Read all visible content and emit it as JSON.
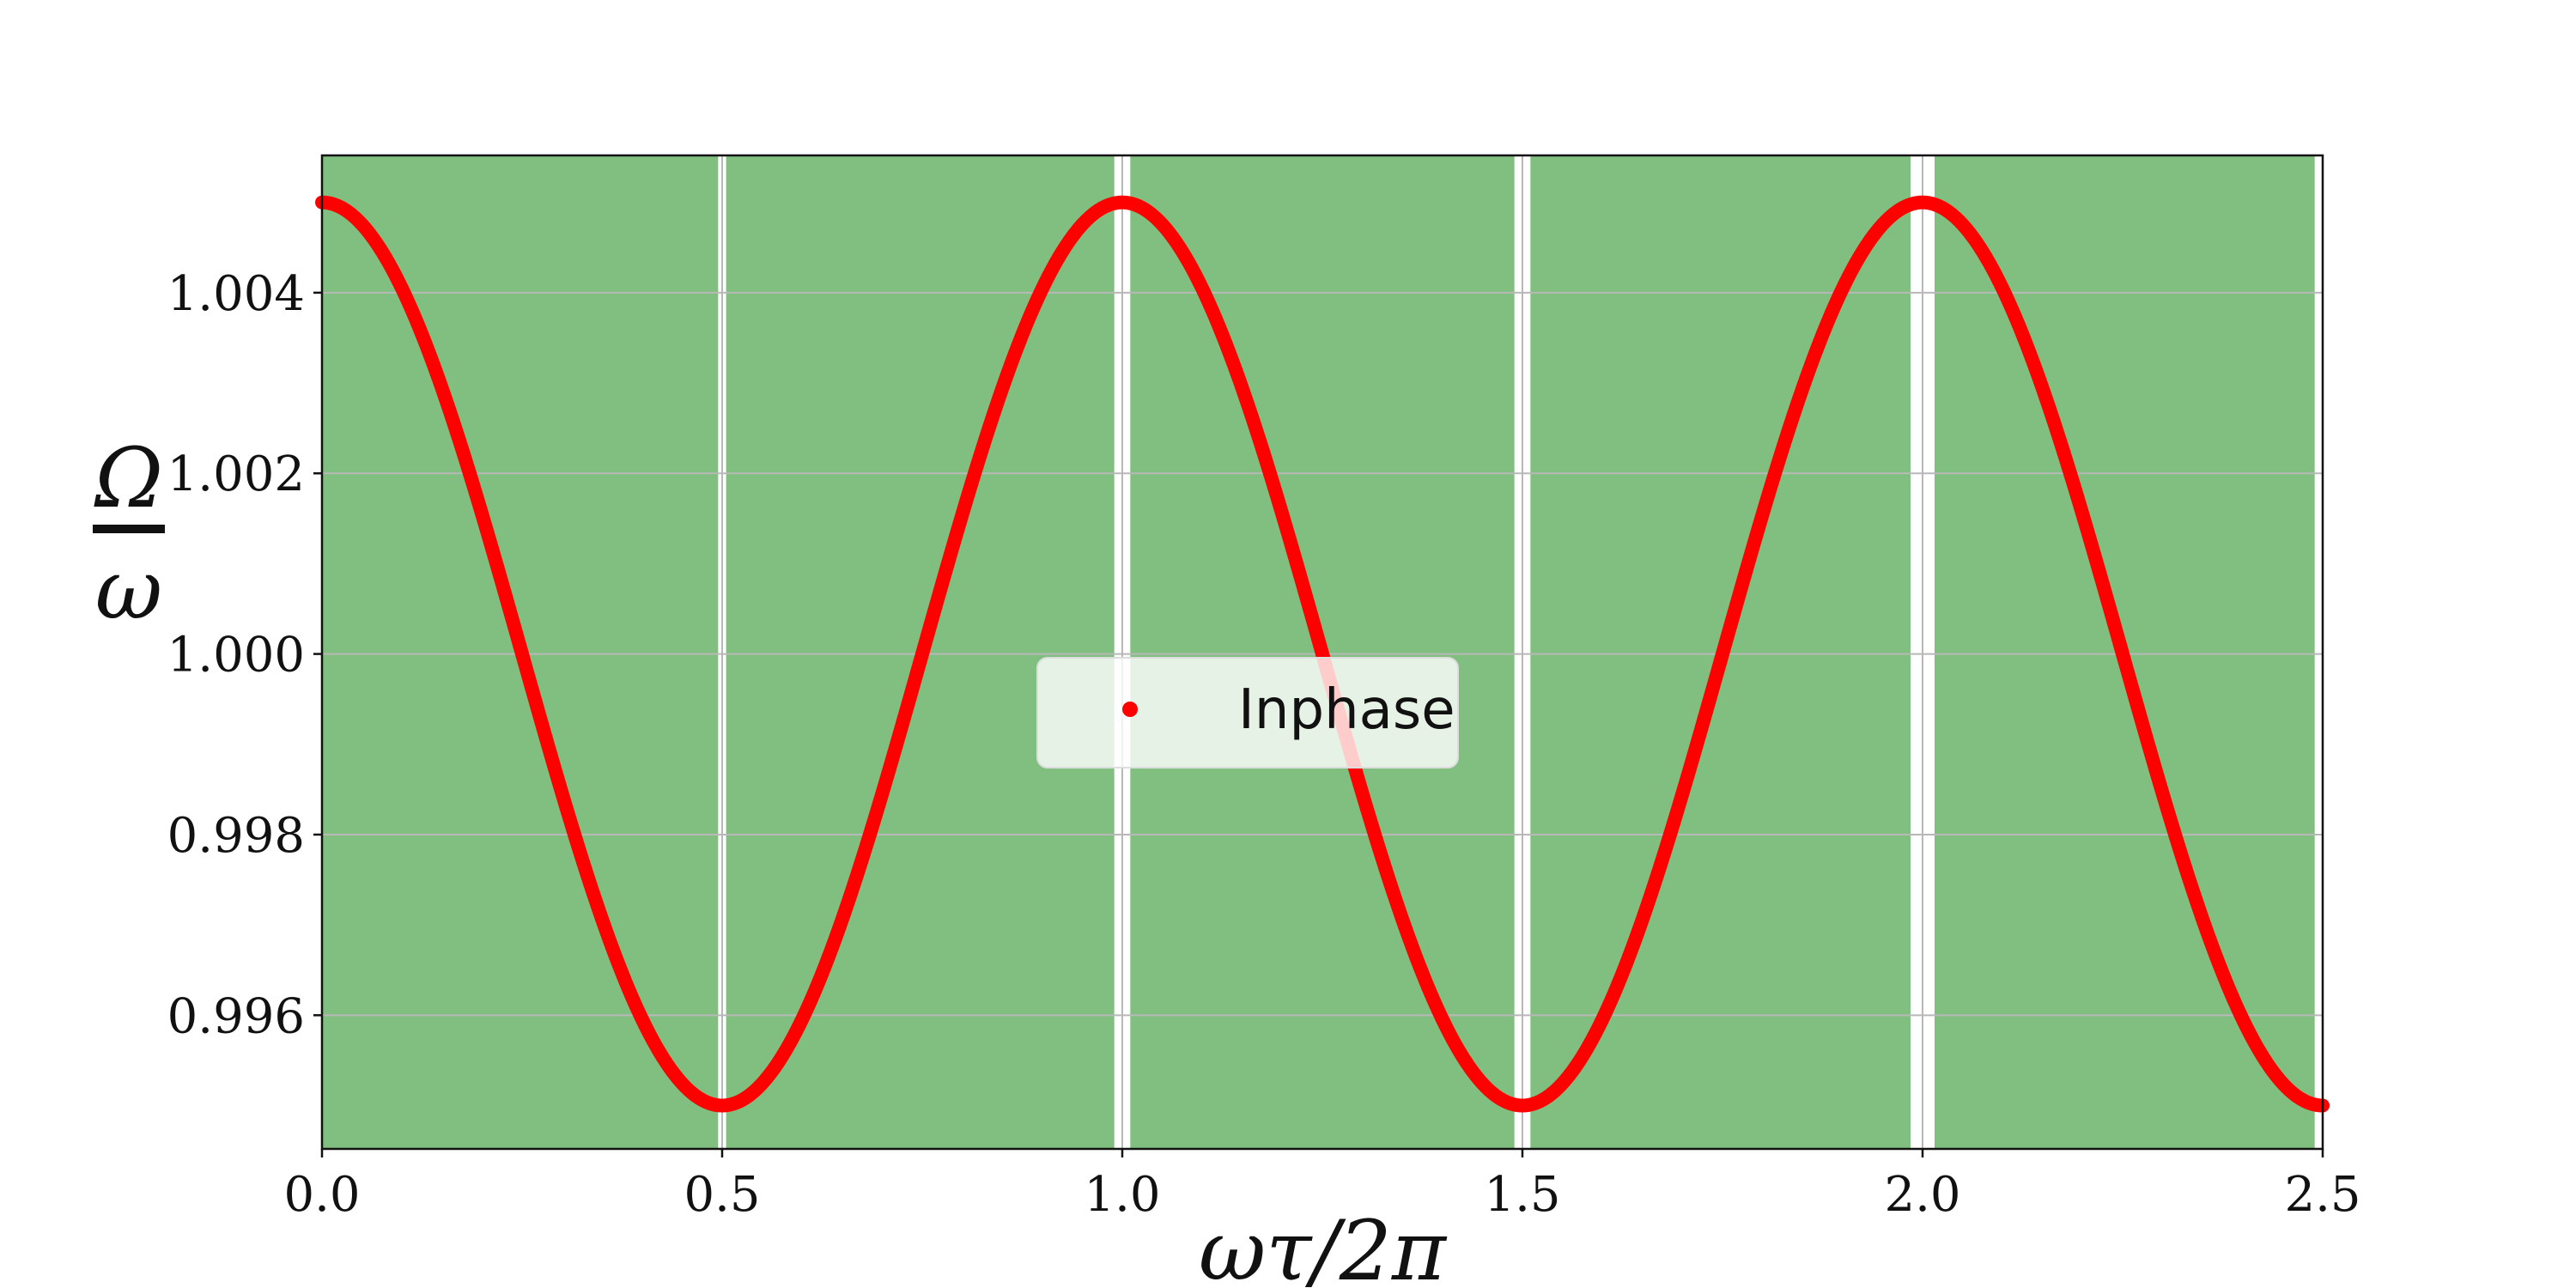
{
  "chart_data": {
    "type": "line",
    "title": "",
    "xlabel": "ωτ/2π",
    "ylabel_numerator": "Ω",
    "ylabel_denominator": "ω",
    "xlim": [
      0.0,
      2.5
    ],
    "ylim": [
      0.99452,
      1.00552
    ],
    "xticks": [
      0.0,
      0.5,
      1.0,
      1.5,
      2.0,
      2.5
    ],
    "xtick_labels": [
      "0.0",
      "0.5",
      "1.0",
      "1.5",
      "2.0",
      "2.5"
    ],
    "yticks": [
      0.996,
      0.998,
      1.0,
      1.002,
      1.004
    ],
    "ytick_labels": [
      "0.996",
      "0.998",
      "1.000",
      "1.002",
      "1.004"
    ],
    "grid": true,
    "legend_position": "center",
    "series": [
      {
        "name": "Inphase",
        "function": "1 + 0.005*cos(2*pi*x)",
        "baseline": 1.0,
        "amplitude": 0.005,
        "period": 1.0,
        "x_start": 0.0,
        "x_end": 2.5,
        "color": "#ff0000",
        "marker": "dot"
      }
    ],
    "stable_regions": [
      {
        "x_start": 0.0,
        "x_end": 0.495
      },
      {
        "x_start": 0.505,
        "x_end": 0.99
      },
      {
        "x_start": 1.01,
        "x_end": 1.49
      },
      {
        "x_start": 1.51,
        "x_end": 1.985
      },
      {
        "x_start": 2.015,
        "x_end": 2.49
      }
    ],
    "colors": {
      "region_fill": "#80bf80",
      "gap_fill": "#ffffff",
      "grid": "#b8b8b8",
      "line": "#ff0000",
      "axis": "#111111"
    }
  }
}
